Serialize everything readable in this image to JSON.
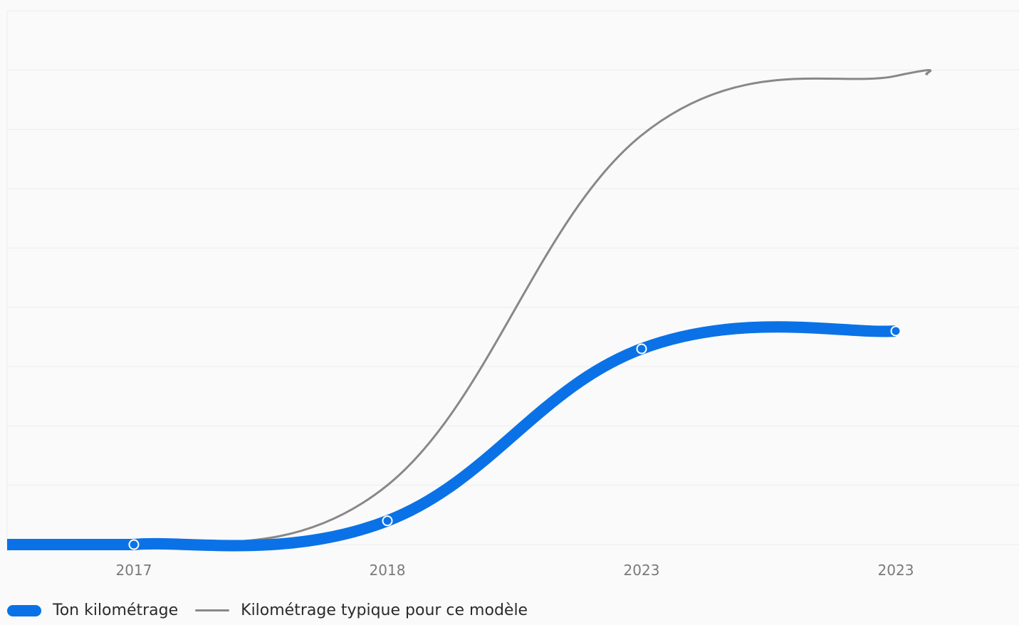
{
  "chart_data": {
    "type": "line",
    "categories": [
      "2017",
      "2018",
      "2023",
      "2023"
    ],
    "series": [
      {
        "name": "Ton kilométrage",
        "color": "#0a72e6",
        "values": [
          0,
          4000,
          33000,
          36000
        ],
        "markers": true
      },
      {
        "name": "Kilométrage typique pour ce modèle",
        "color": "#888888",
        "values": [
          0,
          10000,
          69000,
          79000
        ],
        "markers": false
      }
    ],
    "ylim": [
      0,
      90000
    ],
    "grid": true,
    "legend": "bottom-left",
    "title": "",
    "xlabel": "",
    "ylabel": ""
  },
  "legend": {
    "own_label": "Ton kilométrage",
    "typical_label": "Kilométrage typique pour ce modèle"
  },
  "colors": {
    "own": "#0a72e6",
    "typical": "#888888",
    "grid": "#ececec",
    "background": "#fafafa"
  }
}
